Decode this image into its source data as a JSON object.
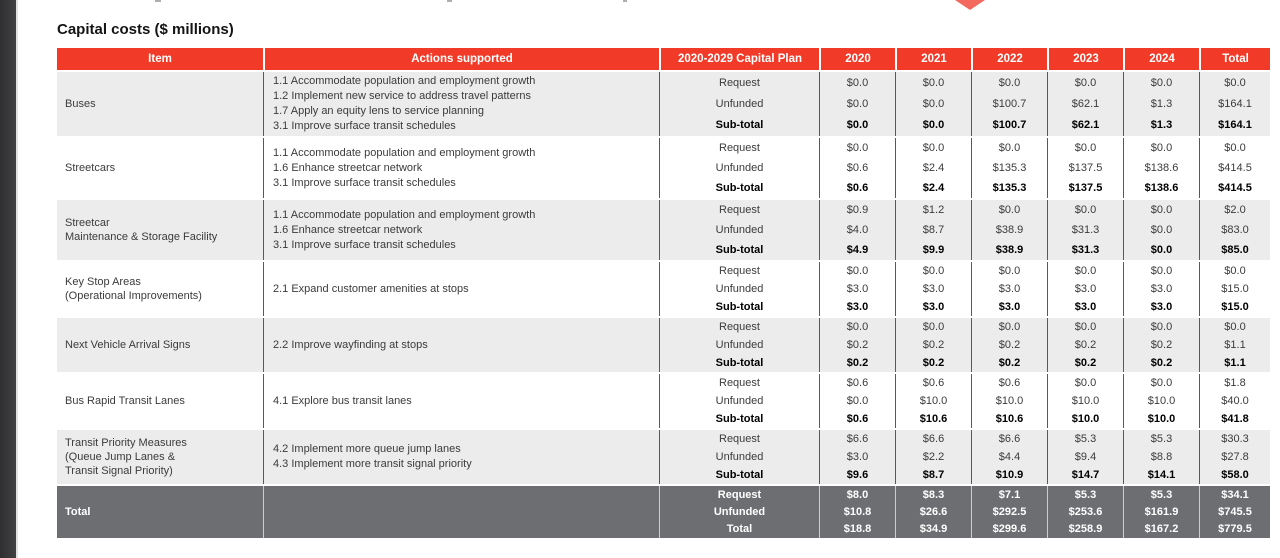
{
  "page": {
    "title": "Capital costs ($ millions)"
  },
  "decor": {
    "diamond_color": "#f4695e",
    "edge_strip_color": "#39393b"
  },
  "table": {
    "headers": [
      "Item",
      "Actions supported",
      "2020-2029 Capital Plan",
      "2020",
      "2021",
      "2022",
      "2023",
      "2024",
      "Total"
    ],
    "colors": {
      "header_bg": "#f13a27",
      "header_text": "#ffffff",
      "shaded_row": "#ececec",
      "total_bg": "#6d6e71",
      "total_text": "#ffffff",
      "divider": "#58595b"
    },
    "groups": [
      {
        "item_lines": [
          "Buses"
        ],
        "shaded": true,
        "actions": [
          "1.1 Accommodate population and employment growth",
          "1.2 Implement new service to address travel patterns",
          "1.7 Apply an equity lens to service planning",
          "3.1 Improve surface transit schedules"
        ],
        "rows": [
          {
            "label": "Request",
            "values": [
              "$0.0",
              "$0.0",
              "$0.0",
              "$0.0",
              "$0.0",
              "$0.0"
            ]
          },
          {
            "label": "Unfunded",
            "values": [
              "$0.0",
              "$0.0",
              "$100.7",
              "$62.1",
              "$1.3",
              "$164.1"
            ]
          },
          {
            "label": "Sub-total",
            "values": [
              "$0.0",
              "$0.0",
              "$100.7",
              "$62.1",
              "$1.3",
              "$164.1"
            ]
          }
        ]
      },
      {
        "item_lines": [
          "Streetcars"
        ],
        "shaded": false,
        "actions": [
          "1.1 Accommodate population and employment growth",
          "1.6 Enhance streetcar network",
          "3.1 Improve surface transit schedules"
        ],
        "rows": [
          {
            "label": "Request",
            "values": [
              "$0.0",
              "$0.0",
              "$0.0",
              "$0.0",
              "$0.0",
              "$0.0"
            ]
          },
          {
            "label": "Unfunded",
            "values": [
              "$0.6",
              "$2.4",
              "$135.3",
              "$137.5",
              "$138.6",
              "$414.5"
            ]
          },
          {
            "label": "Sub-total",
            "values": [
              "$0.6",
              "$2.4",
              "$135.3",
              "$137.5",
              "$138.6",
              "$414.5"
            ]
          }
        ]
      },
      {
        "item_lines": [
          "Streetcar",
          "Maintenance & Storage Facility"
        ],
        "shaded": true,
        "actions": [
          "1.1 Accommodate population and employment growth",
          "1.6 Enhance streetcar network",
          "3.1 Improve surface transit schedules"
        ],
        "rows": [
          {
            "label": "Request",
            "values": [
              "$0.9",
              "$1.2",
              "$0.0",
              "$0.0",
              "$0.0",
              "$2.0"
            ]
          },
          {
            "label": "Unfunded",
            "values": [
              "$4.0",
              "$8.7",
              "$38.9",
              "$31.3",
              "$0.0",
              "$83.0"
            ]
          },
          {
            "label": "Sub-total",
            "values": [
              "$4.9",
              "$9.9",
              "$38.9",
              "$31.3",
              "$0.0",
              "$85.0"
            ]
          }
        ]
      },
      {
        "item_lines": [
          "Key Stop Areas",
          "(Operational Improvements)"
        ],
        "shaded": false,
        "actions": [
          "2.1 Expand customer amenities at stops"
        ],
        "rows": [
          {
            "label": "Request",
            "values": [
              "$0.0",
              "$0.0",
              "$0.0",
              "$0.0",
              "$0.0",
              "$0.0"
            ]
          },
          {
            "label": "Unfunded",
            "values": [
              "$3.0",
              "$3.0",
              "$3.0",
              "$3.0",
              "$3.0",
              "$15.0"
            ]
          },
          {
            "label": "Sub-total",
            "values": [
              "$3.0",
              "$3.0",
              "$3.0",
              "$3.0",
              "$3.0",
              "$15.0"
            ]
          }
        ]
      },
      {
        "item_lines": [
          "Next Vehicle Arrival Signs"
        ],
        "shaded": true,
        "actions": [
          "2.2 Improve wayfinding at stops"
        ],
        "rows": [
          {
            "label": "Request",
            "values": [
              "$0.0",
              "$0.0",
              "$0.0",
              "$0.0",
              "$0.0",
              "$0.0"
            ]
          },
          {
            "label": "Unfunded",
            "values": [
              "$0.2",
              "$0.2",
              "$0.2",
              "$0.2",
              "$0.2",
              "$1.1"
            ]
          },
          {
            "label": "Sub-total",
            "values": [
              "$0.2",
              "$0.2",
              "$0.2",
              "$0.2",
              "$0.2",
              "$1.1"
            ]
          }
        ]
      },
      {
        "item_lines": [
          "Bus Rapid Transit Lanes"
        ],
        "shaded": false,
        "actions": [
          "4.1 Explore bus transit lanes"
        ],
        "rows": [
          {
            "label": "Request",
            "values": [
              "$0.6",
              "$0.6",
              "$0.6",
              "$0.0",
              "$0.0",
              "$1.8"
            ]
          },
          {
            "label": "Unfunded",
            "values": [
              "$0.0",
              "$10.0",
              "$10.0",
              "$10.0",
              "$10.0",
              "$40.0"
            ]
          },
          {
            "label": "Sub-total",
            "values": [
              "$0.6",
              "$10.6",
              "$10.6",
              "$10.0",
              "$10.0",
              "$41.8"
            ]
          }
        ]
      },
      {
        "item_lines": [
          "Transit Priority Measures",
          "(Queue Jump Lanes &",
          "Transit Signal Priority)"
        ],
        "shaded": true,
        "actions": [
          "4.2 Implement more queue jump lanes",
          "4.3 Implement more transit signal priority"
        ],
        "rows": [
          {
            "label": "Request",
            "values": [
              "$6.6",
              "$6.6",
              "$6.6",
              "$5.3",
              "$5.3",
              "$30.3"
            ]
          },
          {
            "label": "Unfunded",
            "values": [
              "$3.0",
              "$2.2",
              "$4.4",
              "$9.4",
              "$8.8",
              "$27.8"
            ]
          },
          {
            "label": "Sub-total",
            "values": [
              "$9.6",
              "$8.7",
              "$10.9",
              "$14.7",
              "$14.1",
              "$58.0"
            ]
          }
        ]
      },
      {
        "item_lines": [
          "Total"
        ],
        "shaded": false,
        "is_total": true,
        "actions": [],
        "rows": [
          {
            "label": "Request",
            "values": [
              "$8.0",
              "$8.3",
              "$7.1",
              "$5.3",
              "$5.3",
              "$34.1"
            ]
          },
          {
            "label": "Unfunded",
            "values": [
              "$10.8",
              "$26.6",
              "$292.5",
              "$253.6",
              "$161.9",
              "$745.5"
            ]
          },
          {
            "label": "Total",
            "values": [
              "$18.8",
              "$34.9",
              "$299.6",
              "$258.9",
              "$167.2",
              "$779.5"
            ]
          }
        ]
      }
    ]
  }
}
